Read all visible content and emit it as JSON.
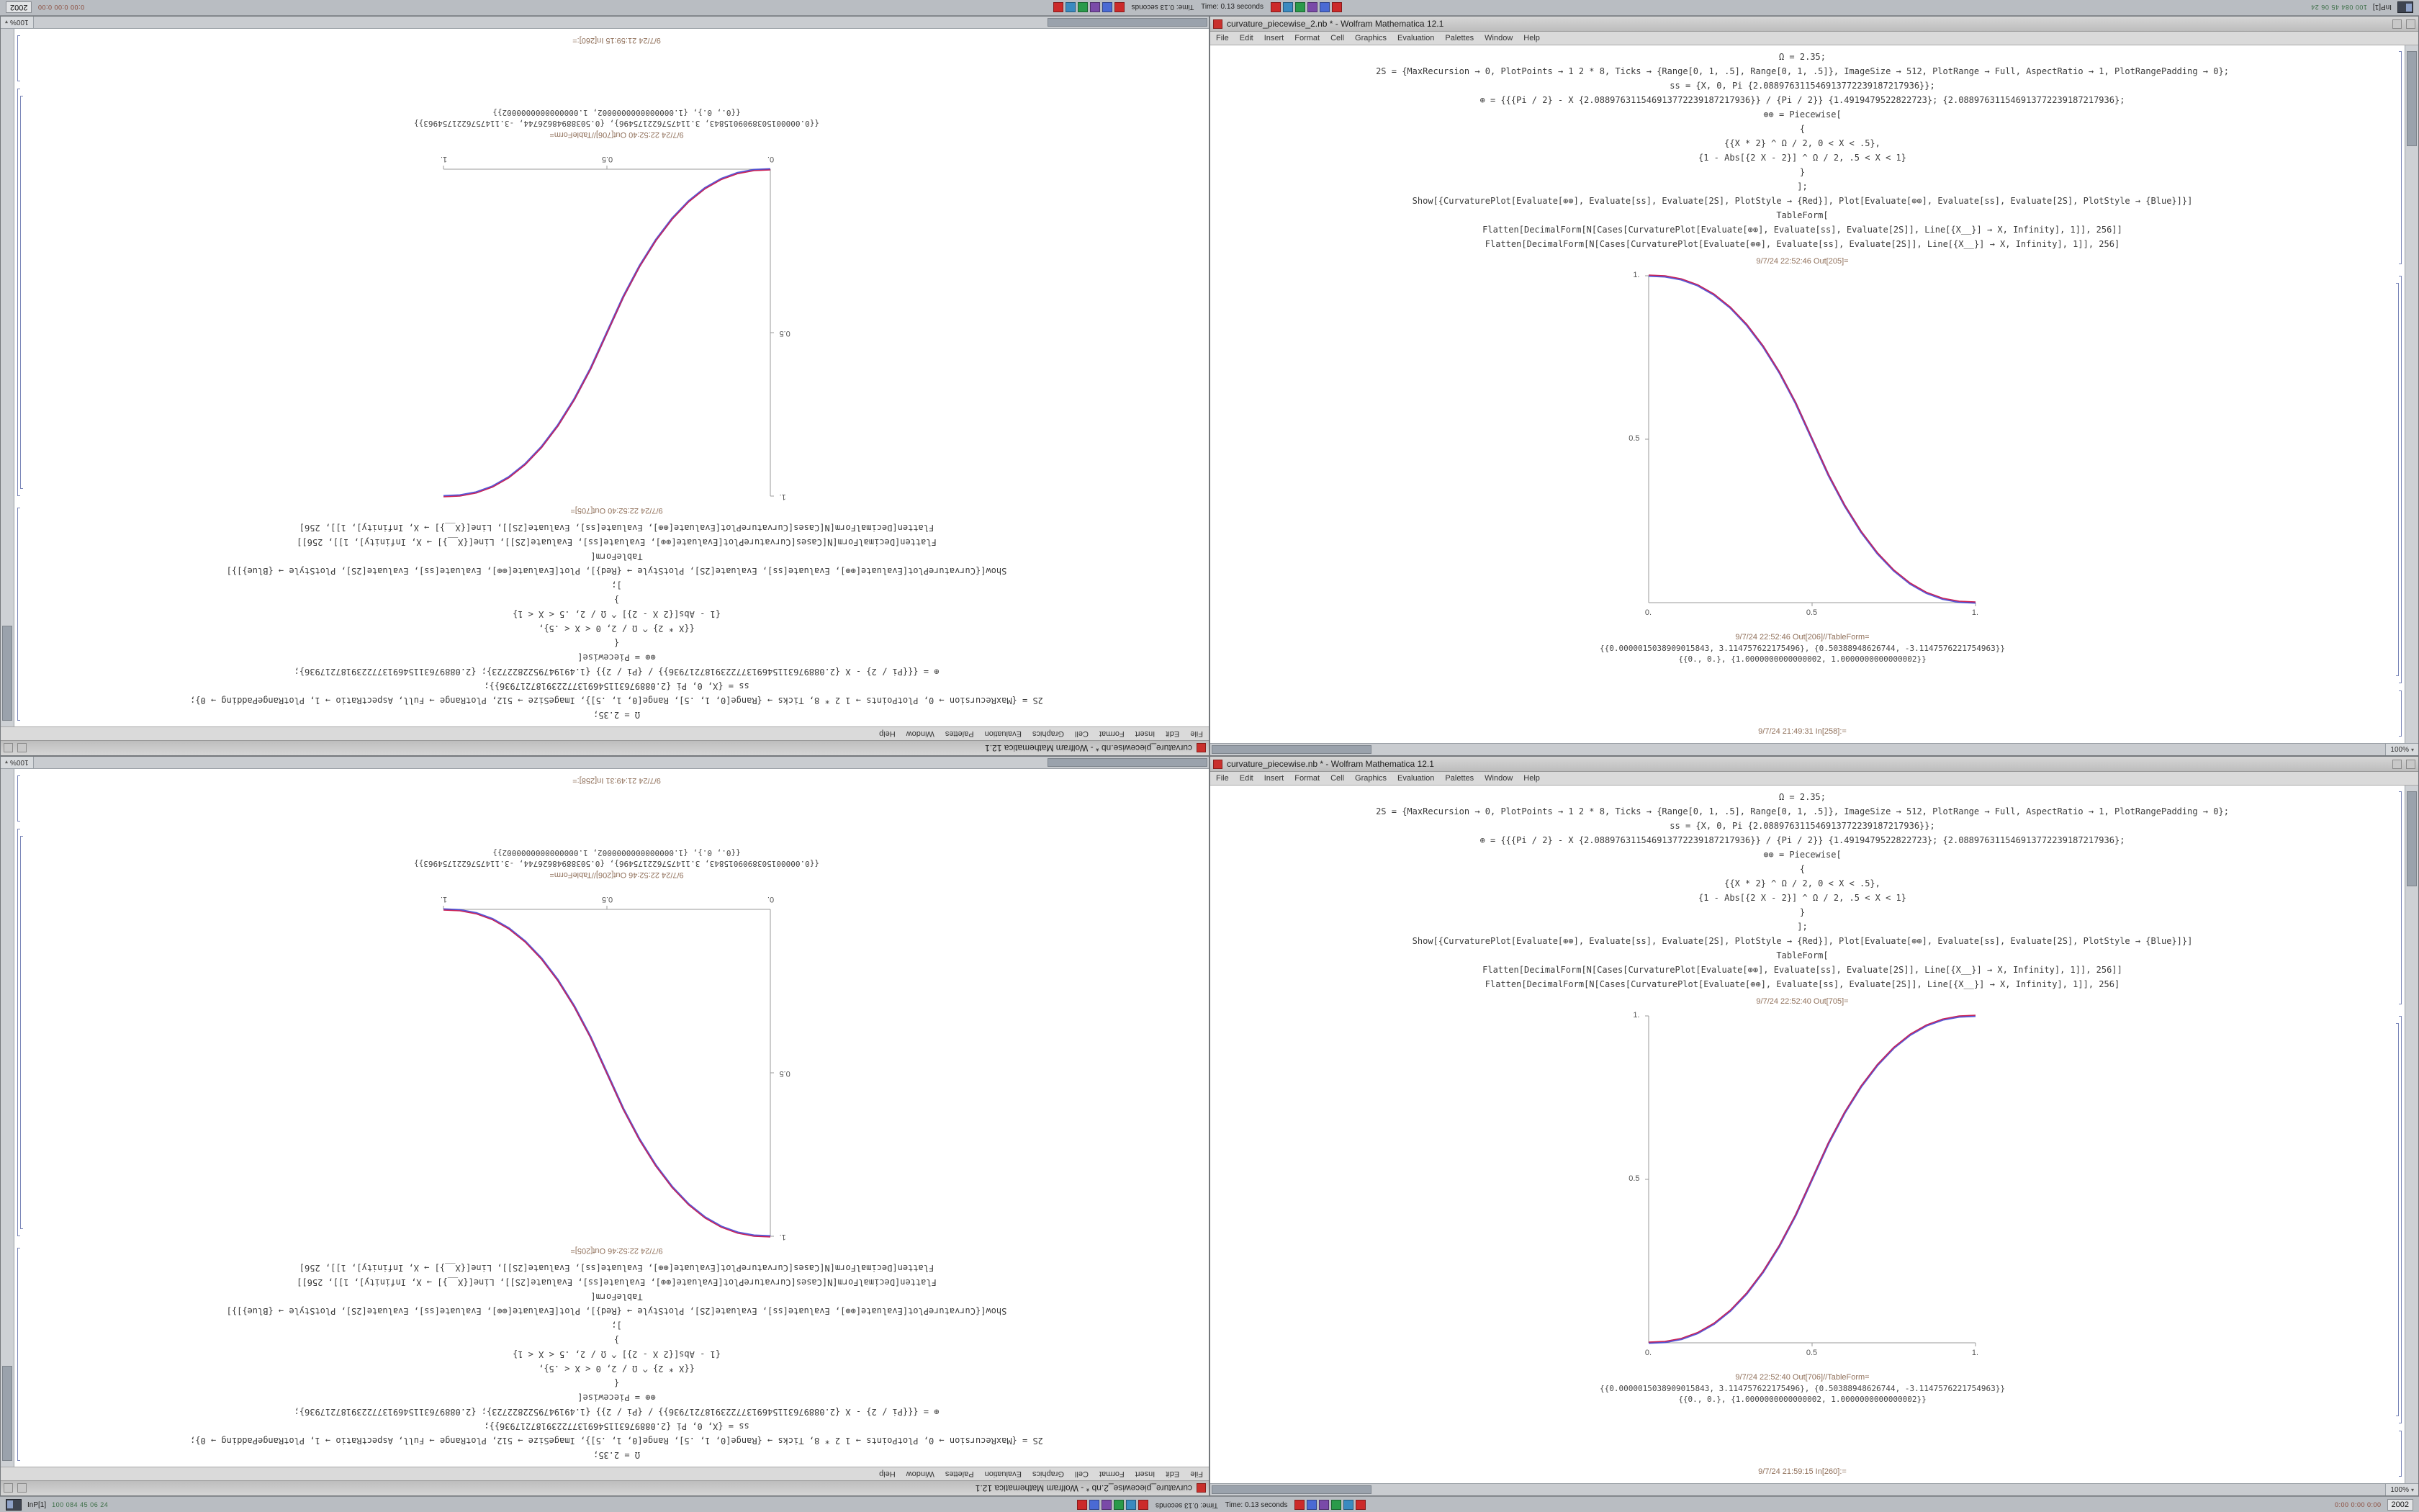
{
  "app": {
    "environment": "Wolfram Mathematica 12.1"
  },
  "menu_items": [
    "File",
    "Edit",
    "Insert",
    "Format",
    "Cell",
    "Graphics",
    "Evaluation",
    "Palettes",
    "Window",
    "Help"
  ],
  "notebook_code": [
    "Ω = 2.35;",
    "2S = {MaxRecursion → 0, PlotPoints → 1 2 * 8, Ticks → {Range[0, 1, .5], Range[0, 1, .5]}, ImageSize → 512, PlotRange → Full, AspectRatio → 1, PlotRangePadding → 0};",
    "ss = {X, 0, Pi {2.088976311546913772239187217936}};",
    "⊕ = {{{Pi / 2} - X {2.088976311546913772239187217936}} / {Pi / 2}} {1.4919479522822723}; {2.088976311546913772239187217936};",
    "⊕⊕ = Piecewise[",
    "{",
    "{{X * 2} ^ Ω / 2, 0 < X < .5},",
    "{1 - Abs[{2 X - 2}] ^ Ω / 2, .5 < X < 1}",
    "}",
    "];",
    "Show[{CurvaturePlot[Evaluate[⊕⊕], Evaluate[ss], Evaluate[2S], PlotStyle → {Red}], Plot[Evaluate[⊕⊕], Evaluate[ss], Evaluate[2S], PlotStyle → {Blue}]}]",
    "TableForm[",
    "Flatten[DecimalForm[N[Cases[CurvaturePlot[Evaluate[⊕⊕], Evaluate[ss], Evaluate[2S]], Line[{X__}] → X, Infinity], 1]], 256]]",
    "Flatten[DecimalForm[N[Cases[CurvaturePlot[Evaluate[⊕⊕], Evaluate[ss], Evaluate[2S]], Line[{X__}] → X, Infinity], 1]], 256]"
  ],
  "windows": {
    "a": {
      "title": "curvature_piecewise.nb * - Wolfram Mathematica 12.1",
      "out1_label": "9/7/24 22:52:40 Out[705]=",
      "out2_label": "9/7/24 22:52:40 Out[706]//TableForm=",
      "result_rows": [
        "{{0.0000015038909015843, 3.114757622175496}, {0.50388948626744, -3.1147576221754963}}",
        "{{0., 0.}, {1.0000000000000002, 1.0000000000000002}}"
      ],
      "next_in_label": "9/7/24 21:59:15 In[260]:=",
      "zoom": "100%",
      "plot": {
        "type": "line",
        "direction": "ascending",
        "x_ticks": [
          "0.",
          "0.5",
          "1."
        ],
        "y_ticks": [
          "1.",
          "0.5"
        ],
        "xlim": [
          0,
          1
        ],
        "ylim": [
          0,
          1
        ],
        "points": [
          [
            0,
            0
          ],
          [
            0.1,
            0.011
          ],
          [
            0.2,
            0.058
          ],
          [
            0.3,
            0.151
          ],
          [
            0.4,
            0.296
          ],
          [
            0.5,
            0.5
          ],
          [
            0.6,
            0.704
          ],
          [
            0.7,
            0.849
          ],
          [
            0.8,
            0.942
          ],
          [
            0.9,
            0.989
          ],
          [
            1,
            1
          ]
        ]
      }
    },
    "b": {
      "title": "curvature_piecewise_2.nb * - Wolfram Mathematica 12.1",
      "out1_label": "9/7/24 22:52:46 Out[205]=",
      "out2_label": "9/7/24 22:52:46 Out[206]//TableForm=",
      "result_rows": [
        "{{0.0000015038909015843, 3.114757622175496}, {0.50388948626744, -3.1147576221754963}}",
        "{{0., 0.}, {1.0000000000000002, 1.0000000000000002}}"
      ],
      "next_in_label": "9/7/24 21:49:31 In[258]:=",
      "zoom": "100%",
      "plot": {
        "type": "line",
        "direction": "descending",
        "x_ticks": [
          "0.",
          "0.5",
          "1."
        ],
        "y_ticks": [
          "1.",
          "0.5"
        ],
        "xlim": [
          0,
          1
        ],
        "ylim": [
          0,
          1
        ],
        "points": [
          [
            0,
            1
          ],
          [
            0.1,
            0.989
          ],
          [
            0.2,
            0.942
          ],
          [
            0.3,
            0.849
          ],
          [
            0.4,
            0.704
          ],
          [
            0.5,
            0.5
          ],
          [
            0.6,
            0.296
          ],
          [
            0.7,
            0.151
          ],
          [
            0.8,
            0.058
          ],
          [
            0.9,
            0.011
          ],
          [
            1,
            0
          ]
        ]
      }
    }
  },
  "taskbar": {
    "pager_label": "InP[1]",
    "stats_left": "100 084 45 06 24",
    "time_status": "Time: 0.13 seconds",
    "stats_right": "0:00 0:00 0:00",
    "clock": "2002",
    "tray_colors": [
      "#cc2a2a",
      "#4a6ad4",
      "#7a4aa8",
      "#2a9a4a",
      "#3a8ac0",
      "#cc2a2a"
    ]
  },
  "colors": {
    "curve_red": "#cc2255",
    "curve_blue": "#3b3bd0",
    "close_button": "#c9302c",
    "cell_label": "#90705a",
    "taskbar_bg": "#b9bdc2"
  }
}
